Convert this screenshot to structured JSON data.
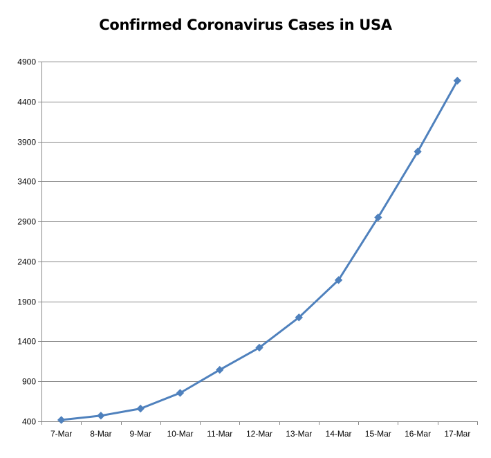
{
  "chart_data": {
    "type": "line",
    "title": "Confirmed Coronavirus Cases in USA",
    "xlabel": "",
    "ylabel": "",
    "categories": [
      "7-Mar",
      "8-Mar",
      "9-Mar",
      "10-Mar",
      "11-Mar",
      "12-Mar",
      "13-Mar",
      "14-Mar",
      "15-Mar",
      "16-Mar",
      "17-Mar"
    ],
    "series": [
      {
        "values": [
          417,
          471,
          559,
          755,
          1044,
          1322,
          1700,
          2167,
          2951,
          3774,
          4661
        ]
      }
    ],
    "ylim": [
      400,
      4900
    ],
    "yticks": [
      400,
      900,
      1400,
      1900,
      2400,
      2900,
      3400,
      3900,
      4400,
      4900
    ],
    "grid": true,
    "legend": "none",
    "colors": {
      "line": "#4F81BD",
      "grid": "#868686",
      "axis": "#868686"
    },
    "marker": "diamond"
  }
}
